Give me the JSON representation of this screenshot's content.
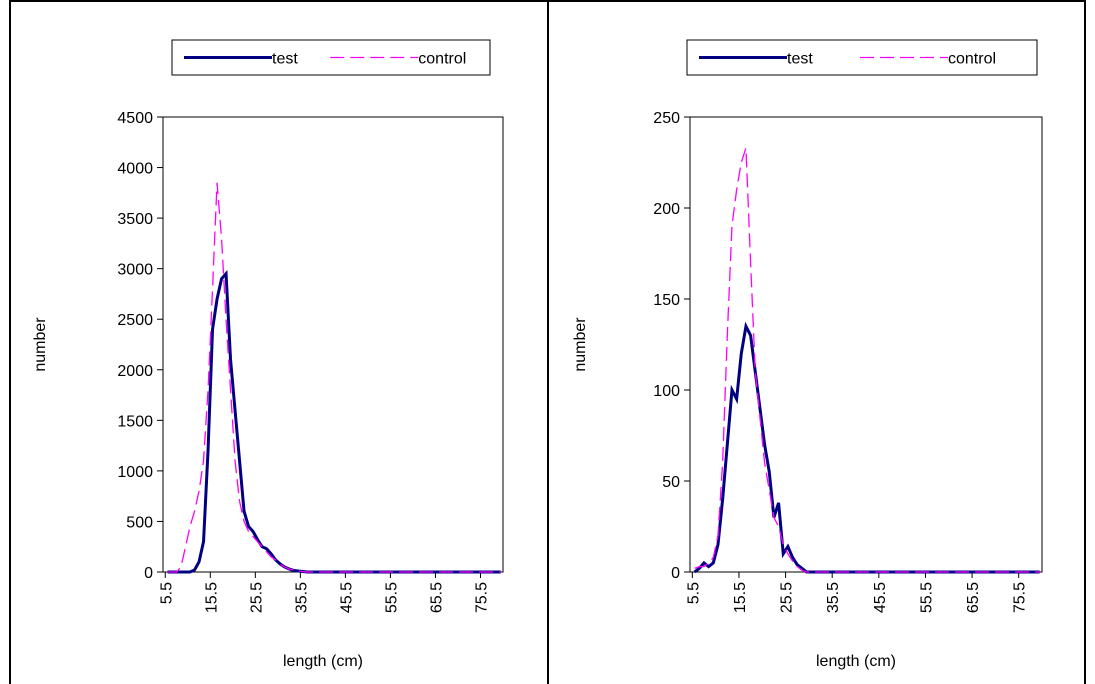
{
  "chart_data": [
    {
      "type": "line",
      "x_label": "length (cm)",
      "y_label": "number",
      "x": [
        6,
        7,
        8,
        9,
        10,
        11,
        12,
        13,
        14,
        15,
        16,
        17,
        18,
        19,
        20,
        21,
        22,
        23,
        24,
        25,
        26,
        27,
        28,
        29,
        30,
        31,
        32,
        33,
        34,
        35,
        36,
        37,
        38,
        39,
        40,
        50,
        60,
        70,
        80
      ],
      "series": [
        {
          "name": "test",
          "color": "#000080",
          "values": [
            0,
            0,
            0,
            0,
            0,
            0,
            20,
            100,
            300,
            1200,
            2400,
            2700,
            2900,
            2950,
            2100,
            1600,
            1100,
            600,
            450,
            400,
            320,
            250,
            230,
            180,
            120,
            80,
            50,
            30,
            15,
            10,
            5,
            0,
            0,
            0,
            0,
            0,
            0,
            0,
            0
          ]
        },
        {
          "name": "control",
          "color": "#ff00ff",
          "values": [
            0,
            0,
            0,
            50,
            250,
            450,
            600,
            800,
            1100,
            1800,
            2800,
            3850,
            3300,
            2500,
            1800,
            1100,
            700,
            500,
            400,
            350,
            300,
            250,
            200,
            150,
            120,
            80,
            50,
            30,
            20,
            10,
            5,
            0,
            0,
            0,
            0,
            0,
            0,
            0,
            0
          ]
        }
      ],
      "xlim": [
        5,
        80.5
      ],
      "xticks": [
        5.5,
        15.5,
        25.5,
        35.5,
        45.5,
        55.5,
        65.5,
        75.5
      ],
      "ylim": [
        0,
        4500
      ],
      "yticks": [
        0,
        500,
        1000,
        1500,
        2000,
        2500,
        3000,
        3500,
        4000,
        4500
      ],
      "legend": "top"
    },
    {
      "type": "line",
      "x_label": "length (cm)",
      "y_label": "number",
      "x": [
        6,
        7,
        8,
        9,
        10,
        11,
        12,
        13,
        14,
        15,
        16,
        17,
        18,
        19,
        20,
        21,
        22,
        23,
        24,
        25,
        26,
        27,
        28,
        29,
        30,
        31,
        32,
        33,
        34,
        35,
        36,
        37,
        38,
        39,
        40,
        50,
        60,
        70,
        80
      ],
      "series": [
        {
          "name": "test",
          "color": "#000080",
          "values": [
            0,
            2,
            5,
            3,
            5,
            15,
            40,
            70,
            100,
            95,
            120,
            135,
            130,
            110,
            90,
            70,
            55,
            30,
            38,
            10,
            14,
            8,
            4,
            2,
            0,
            0,
            0,
            0,
            0,
            0,
            0,
            0,
            0,
            0,
            0,
            0,
            0,
            0,
            0
          ]
        },
        {
          "name": "control",
          "color": "#ff00ff",
          "values": [
            2,
            3,
            3,
            5,
            8,
            20,
            60,
            130,
            190,
            210,
            225,
            233,
            170,
            110,
            85,
            60,
            45,
            30,
            25,
            15,
            10,
            6,
            3,
            1,
            0,
            0,
            0,
            0,
            0,
            0,
            0,
            0,
            0,
            0,
            0,
            0,
            0,
            0,
            0
          ]
        }
      ],
      "xlim": [
        5,
        80.5
      ],
      "xticks": [
        5.5,
        15.5,
        25.5,
        35.5,
        45.5,
        55.5,
        65.5,
        75.5
      ],
      "ylim": [
        0,
        250
      ],
      "yticks": [
        0,
        50,
        100,
        150,
        200,
        250
      ],
      "legend": "top"
    }
  ]
}
